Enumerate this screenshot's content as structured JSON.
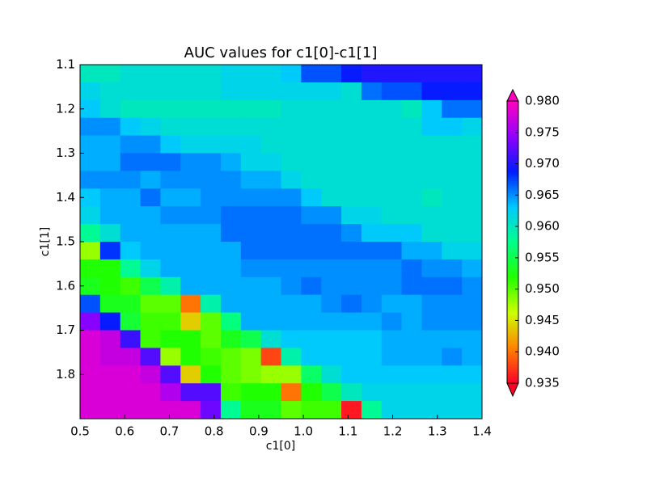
{
  "chart_data": {
    "type": "heatmap",
    "title": "AUC values for c1[0]-c1[1]",
    "x_label": "c1[0]",
    "y_label": "c1[1]",
    "xlim": [
      0.5,
      1.4
    ],
    "ylim": [
      1.9,
      1.1
    ],
    "xticks": [
      0.5,
      0.6,
      0.7,
      0.8,
      0.9,
      {
        "value": 1,
        "label": "1.0"
      },
      1.1,
      1.2,
      1.3,
      1.4
    ],
    "yticks": [
      1.1,
      1.2,
      1.3,
      1.4,
      1.5,
      1.6,
      1.7,
      1.8
    ],
    "clim": [
      0.935,
      0.98
    ],
    "cticks": [
      0.935,
      {
        "value": 0.94,
        "label": "0.940"
      },
      0.945,
      {
        "value": 0.95,
        "label": "0.950"
      },
      0.955,
      {
        "value": 0.96,
        "label": "0.960"
      },
      0.965,
      {
        "value": 0.97,
        "label": "0.970"
      },
      0.975,
      {
        "value": 0.98,
        "label": "0.980"
      }
    ],
    "colormap": [
      "#ff0029",
      "#ff8200",
      "#cfff00",
      "#22ff00",
      "#00ff8a",
      "#00c9ff",
      "#001cff",
      "#9100ff",
      "#ff00bf"
    ],
    "values": [
      [
        0.96,
        0.96,
        0.961,
        0.961,
        0.961,
        0.961,
        0.961,
        0.962,
        0.962,
        0.962,
        0.963,
        0.967,
        0.967,
        0.969,
        0.97,
        0.97,
        0.97,
        0.97,
        0.97,
        0.97
      ],
      [
        0.962,
        0.961,
        0.961,
        0.961,
        0.961,
        0.961,
        0.961,
        0.962,
        0.962,
        0.962,
        0.962,
        0.962,
        0.962,
        0.961,
        0.966,
        0.967,
        0.967,
        0.969,
        0.969,
        0.969
      ],
      [
        0.963,
        0.961,
        0.96,
        0.96,
        0.96,
        0.96,
        0.96,
        0.96,
        0.96,
        0.96,
        0.961,
        0.961,
        0.961,
        0.961,
        0.961,
        0.961,
        0.96,
        0.963,
        0.966,
        0.966
      ],
      [
        0.965,
        0.965,
        0.963,
        0.962,
        0.961,
        0.961,
        0.961,
        0.961,
        0.961,
        0.961,
        0.961,
        0.961,
        0.961,
        0.961,
        0.961,
        0.961,
        0.961,
        0.963,
        0.963,
        0.962
      ],
      [
        0.964,
        0.964,
        0.965,
        0.965,
        0.963,
        0.962,
        0.962,
        0.962,
        0.962,
        0.961,
        0.961,
        0.961,
        0.961,
        0.961,
        0.961,
        0.961,
        0.961,
        0.961,
        0.961,
        0.961
      ],
      [
        0.964,
        0.964,
        0.966,
        0.966,
        0.966,
        0.965,
        0.965,
        0.964,
        0.962,
        0.962,
        0.961,
        0.961,
        0.961,
        0.961,
        0.961,
        0.961,
        0.961,
        0.961,
        0.961,
        0.961
      ],
      [
        0.965,
        0.965,
        0.965,
        0.964,
        0.965,
        0.965,
        0.965,
        0.965,
        0.964,
        0.964,
        0.962,
        0.961,
        0.961,
        0.961,
        0.961,
        0.961,
        0.961,
        0.961,
        0.961,
        0.961
      ],
      [
        0.963,
        0.964,
        0.964,
        0.966,
        0.964,
        0.964,
        0.965,
        0.965,
        0.965,
        0.965,
        0.965,
        0.963,
        0.961,
        0.961,
        0.961,
        0.961,
        0.961,
        0.96,
        0.961,
        0.961
      ],
      [
        0.962,
        0.964,
        0.964,
        0.964,
        0.965,
        0.965,
        0.965,
        0.966,
        0.966,
        0.966,
        0.966,
        0.965,
        0.965,
        0.962,
        0.962,
        0.961,
        0.961,
        0.961,
        0.961,
        0.961
      ],
      [
        0.958,
        0.961,
        0.964,
        0.964,
        0.964,
        0.964,
        0.964,
        0.966,
        0.966,
        0.966,
        0.966,
        0.966,
        0.966,
        0.965,
        0.963,
        0.963,
        0.963,
        0.961,
        0.961,
        0.961
      ],
      [
        0.948,
        0.968,
        0.963,
        0.964,
        0.964,
        0.964,
        0.964,
        0.964,
        0.966,
        0.966,
        0.966,
        0.966,
        0.966,
        0.966,
        0.966,
        0.966,
        0.964,
        0.964,
        0.962,
        0.962
      ],
      [
        0.952,
        0.952,
        0.958,
        0.962,
        0.964,
        0.964,
        0.964,
        0.964,
        0.965,
        0.965,
        0.965,
        0.965,
        0.965,
        0.965,
        0.965,
        0.965,
        0.966,
        0.965,
        0.965,
        0.964
      ],
      [
        0.953,
        0.952,
        0.951,
        0.955,
        0.959,
        0.964,
        0.964,
        0.964,
        0.964,
        0.964,
        0.965,
        0.966,
        0.965,
        0.965,
        0.965,
        0.965,
        0.966,
        0.966,
        0.966,
        0.965
      ],
      [
        0.967,
        0.953,
        0.953,
        0.95,
        0.95,
        0.94,
        0.959,
        0.964,
        0.964,
        0.964,
        0.964,
        0.964,
        0.965,
        0.966,
        0.965,
        0.964,
        0.964,
        0.965,
        0.965,
        0.965
      ],
      [
        0.974,
        0.969,
        0.954,
        0.951,
        0.951,
        0.944,
        0.95,
        0.957,
        0.964,
        0.964,
        0.964,
        0.964,
        0.964,
        0.964,
        0.964,
        0.965,
        0.964,
        0.965,
        0.965,
        0.965
      ],
      [
        0.978,
        0.977,
        0.971,
        0.951,
        0.952,
        0.952,
        0.95,
        0.953,
        0.955,
        0.961,
        0.963,
        0.963,
        0.963,
        0.963,
        0.963,
        0.964,
        0.964,
        0.964,
        0.964,
        0.964
      ],
      [
        0.978,
        0.977,
        0.977,
        0.972,
        0.948,
        0.952,
        0.951,
        0.95,
        0.949,
        0.938,
        0.959,
        0.963,
        0.963,
        0.963,
        0.963,
        0.964,
        0.964,
        0.964,
        0.965,
        0.964
      ],
      [
        0.978,
        0.978,
        0.978,
        0.977,
        0.972,
        0.944,
        0.952,
        0.95,
        0.949,
        0.948,
        0.948,
        0.956,
        0.961,
        0.963,
        0.963,
        0.963,
        0.963,
        0.963,
        0.963,
        0.963
      ],
      [
        0.978,
        0.978,
        0.978,
        0.978,
        0.976,
        0.972,
        0.972,
        0.951,
        0.952,
        0.952,
        0.94,
        0.952,
        0.955,
        0.96,
        0.962,
        0.962,
        0.962,
        0.962,
        0.962,
        0.962
      ],
      [
        0.978,
        0.978,
        0.978,
        0.978,
        0.978,
        0.978,
        0.973,
        0.958,
        0.953,
        0.953,
        0.95,
        0.951,
        0.951,
        0.936,
        0.958,
        0.962,
        0.962,
        0.962,
        0.962,
        0.962
      ]
    ]
  }
}
